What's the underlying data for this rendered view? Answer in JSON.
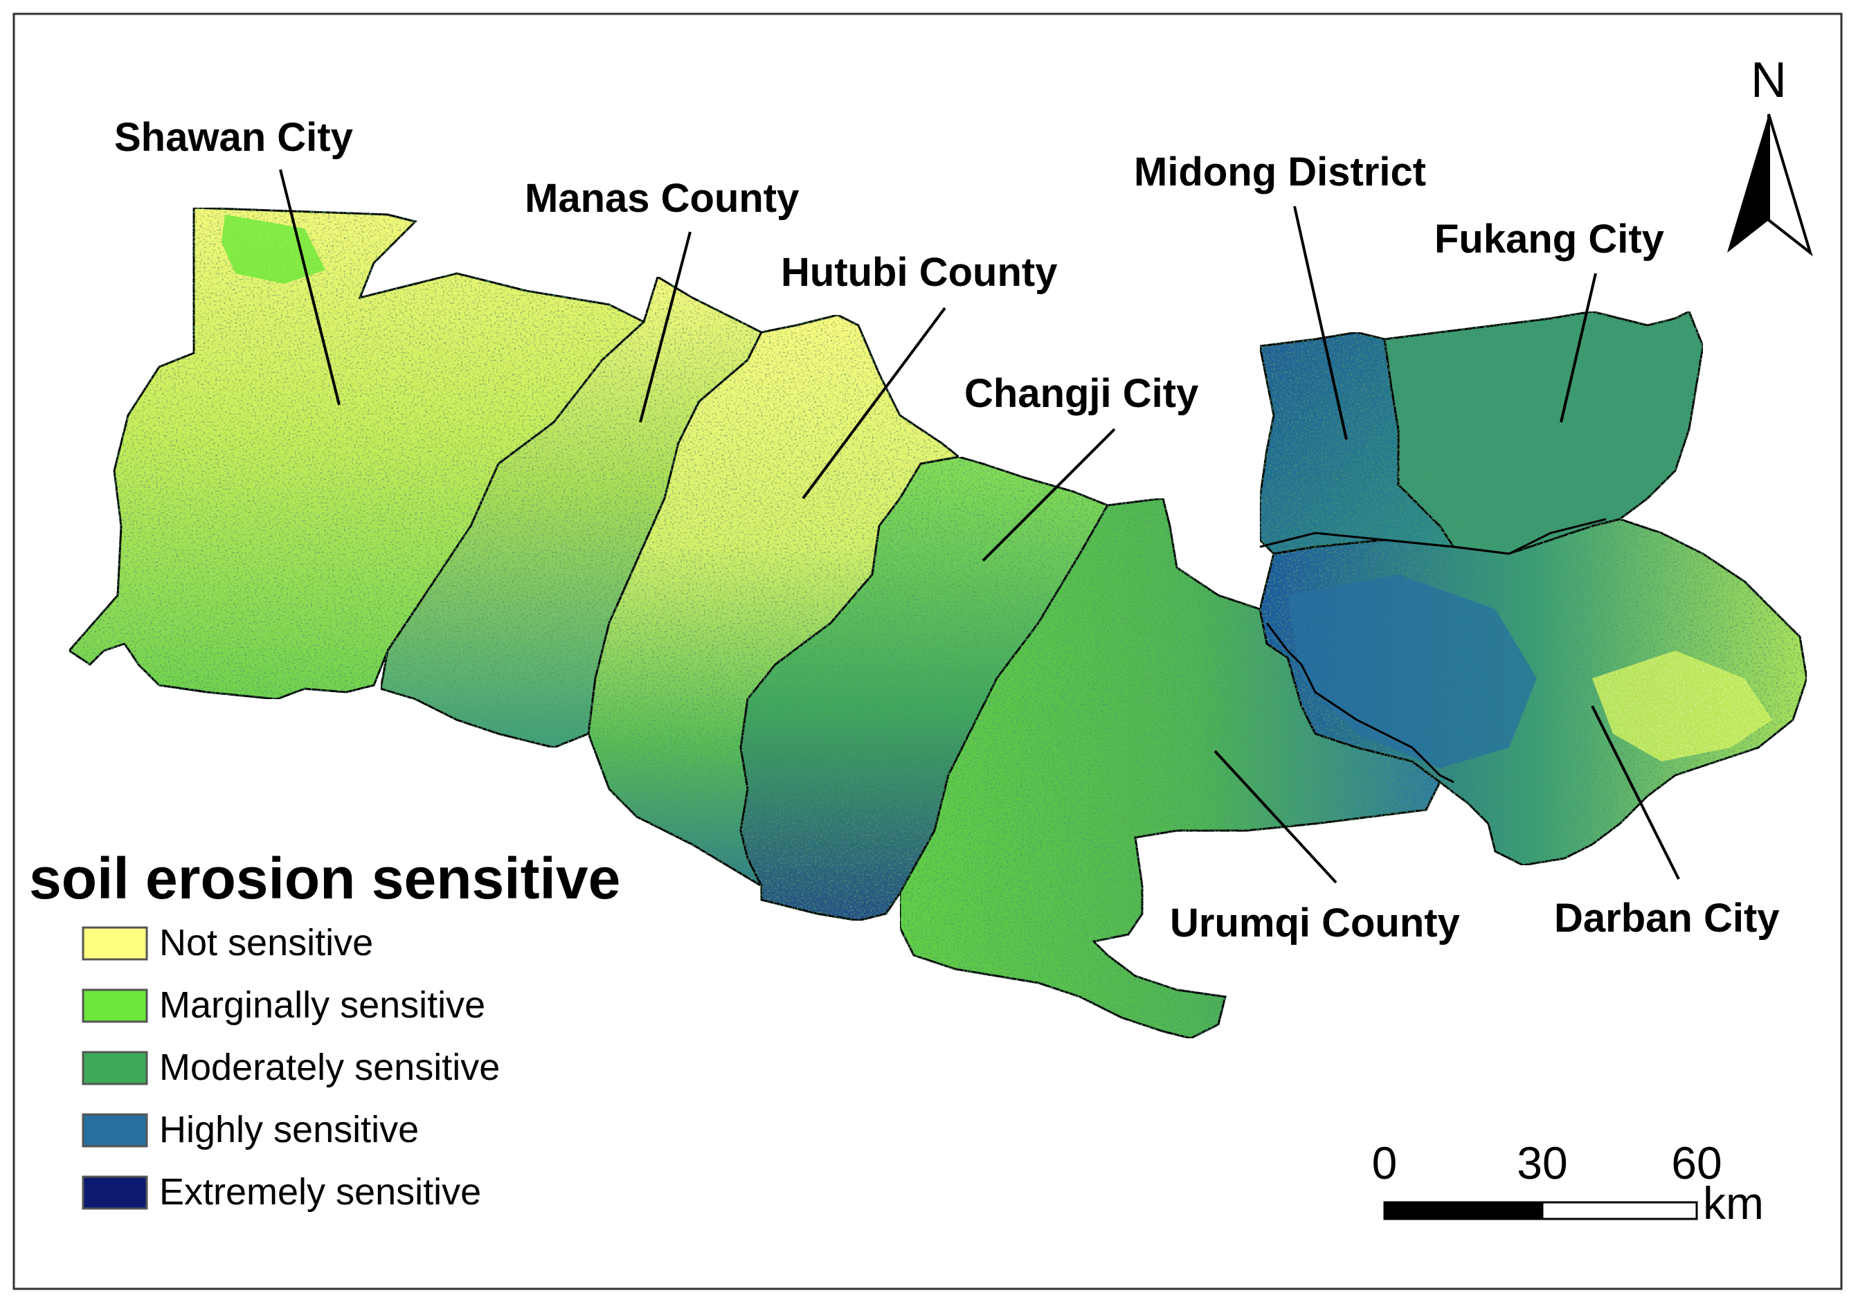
{
  "legend": {
    "title": "soil erosion sensitive",
    "items": [
      {
        "label": "Not sensitive",
        "color": "#ffff80"
      },
      {
        "label": "Marginally sensitive",
        "color": "#6be83a"
      },
      {
        "label": "Moderately sensitive",
        "color": "#3daa5a"
      },
      {
        "label": "Highly sensitive",
        "color": "#2770a0"
      },
      {
        "label": "Extremely sensitive",
        "color": "#0c1a72"
      }
    ]
  },
  "regions": {
    "shawan": "Shawan City",
    "manas": "Manas County",
    "hutubi": "Hutubi County",
    "changji": "Changji City",
    "midong": "Midong District",
    "fukang": "Fukang City",
    "urumqi": "Urumqi County",
    "darban": "Darban City"
  },
  "north_arrow": {
    "label": "N"
  },
  "scale_bar": {
    "ticks": [
      "0",
      "30",
      "60"
    ],
    "unit": "km"
  }
}
